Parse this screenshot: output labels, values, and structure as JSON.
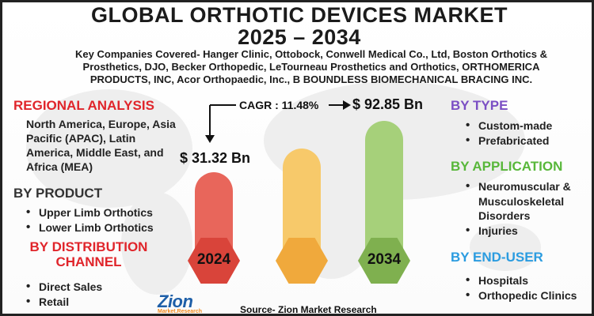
{
  "title_line1": "GLOBAL ORTHOTIC DEVICES MARKET",
  "title_line2": "2025 – 2034",
  "subtitle": "Key Companies Covered- Hanger Clinic, Ottobock, Conwell Medical Co., Ltd, Boston Orthotics & Prosthetics, DJO, Becker Orthopedic, LeTourneau Prosthetics and Orthotics, ORTHOMERICA PRODUCTS, INC, Acor Orthopaedic, Inc., B BOUNDLESS BIOMECHANICAL BRACING INC.",
  "regional": {
    "heading": "REGIONAL ANALYSIS",
    "text": "North America, Europe, Asia Pacific (APAC), Latin America, Middle East, and Africa (MEA)"
  },
  "product": {
    "heading": "BY PRODUCT",
    "items": [
      "Upper Limb Orthotics",
      "Lower Limb Orthotics"
    ]
  },
  "distribution": {
    "heading_line1": "BY DISTRIBUTION",
    "heading_line2": "CHANNEL",
    "items": [
      "Direct Sales",
      "Retail"
    ]
  },
  "type": {
    "heading": "BY TYPE",
    "items": [
      "Custom-made",
      "Prefabricated"
    ]
  },
  "application": {
    "heading": "BY APPLICATION",
    "items": [
      "Neuromuscular & Musculoskeletal Disorders",
      "Injuries"
    ]
  },
  "end_user": {
    "heading": "BY END-USER",
    "items": [
      "Hospitals",
      "Orthopedic Clinics"
    ]
  },
  "cagr": "CAGR : 11.48%",
  "value_2024": "$ 31.32 Bn",
  "value_2034": "$ 92.85 Bn",
  "year_2024": "2024",
  "year_2034": "2034",
  "source": "Source- Zion Market Research",
  "logo_main": "Zion",
  "logo_sub": "Market.Research",
  "colors": {
    "bar_2024": "#e8665b",
    "hex_2024": "#d9443a",
    "bar_mid": "#f7c96a",
    "hex_mid": "#f0a93c",
    "bar_2034": "#a6d07a",
    "hex_2034": "#7fb04f"
  }
}
